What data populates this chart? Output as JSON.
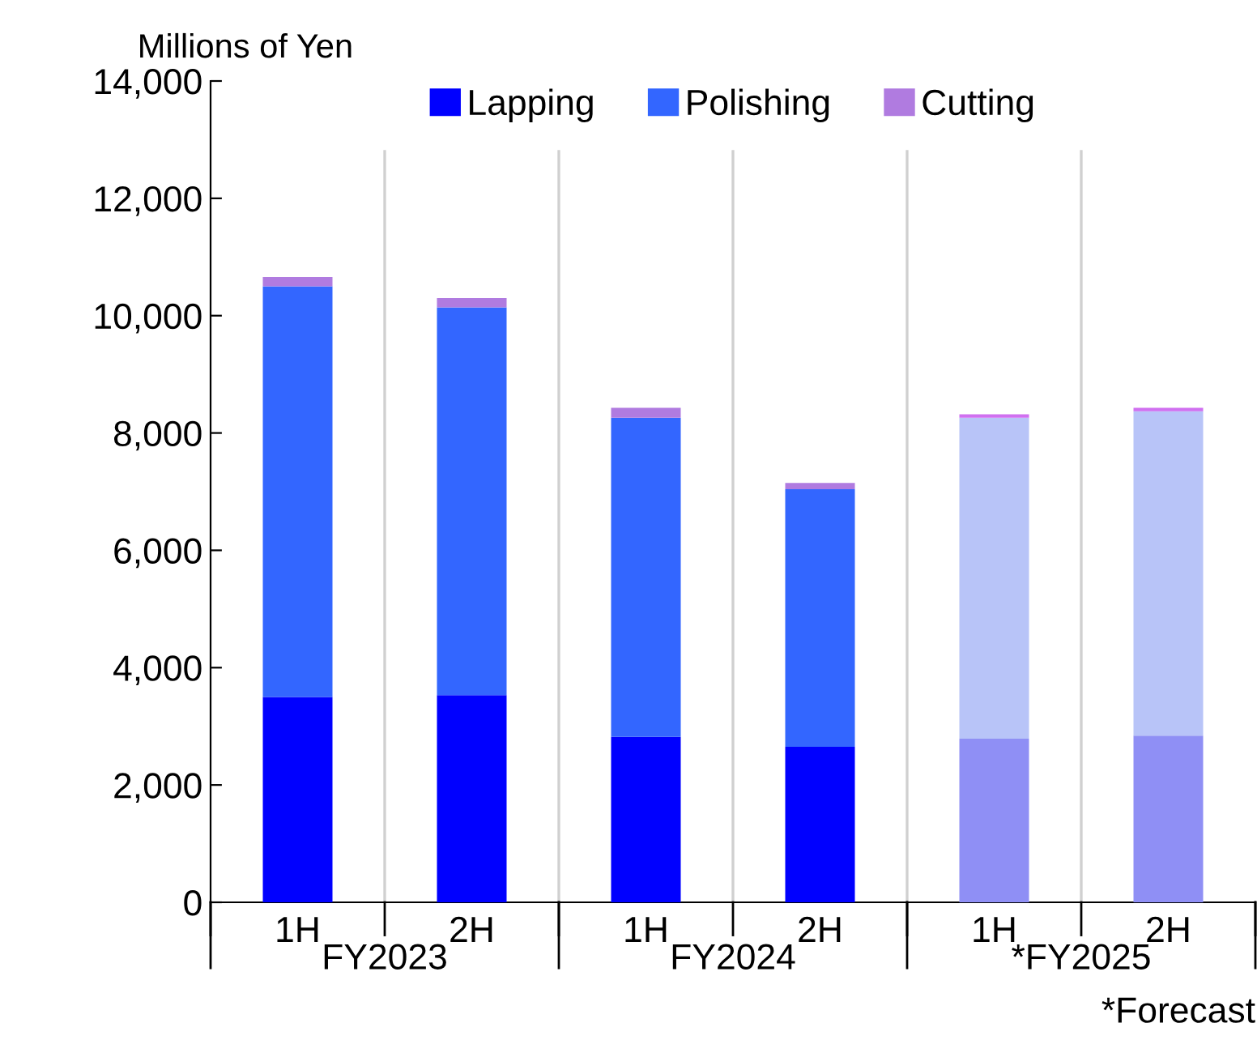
{
  "chart_data": {
    "type": "bar",
    "stacked": true,
    "ylabel": "Millions of Yen",
    "categories": [
      "1H",
      "2H",
      "1H",
      "2H",
      "1H",
      "2H"
    ],
    "series": [
      {
        "name": "Lapping",
        "color": "#0000ff",
        "colors": [
          "#0000ff",
          "#0000ff",
          "#0000ff",
          "#0000ff",
          "#8f8ff5",
          "#8f8ff5"
        ],
        "values": [
          3500,
          3530,
          2820,
          2650,
          2790,
          2840
        ]
      },
      {
        "name": "Polishing",
        "color": "#3366ff",
        "colors": [
          "#3366ff",
          "#3366ff",
          "#3366ff",
          "#3366ff",
          "#b8c4f8",
          "#b8c4f8"
        ],
        "values": [
          7000,
          6610,
          5440,
          4390,
          5470,
          5530
        ]
      },
      {
        "name": "Cutting",
        "color": "#b07be0",
        "colors": [
          "#b07be0",
          "#b07be0",
          "#b07be0",
          "#b07be0",
          "#d070f0",
          "#d070f0"
        ],
        "values": [
          160,
          160,
          170,
          110,
          60,
          60
        ]
      }
    ],
    "ylim": [
      0,
      14000
    ],
    "yticks": [
      {
        "value": 0,
        "label": "0"
      },
      {
        "value": 2000,
        "label": "2,000"
      },
      {
        "value": 4000,
        "label": "4,000"
      },
      {
        "value": 6000,
        "label": "6,000"
      },
      {
        "value": 8000,
        "label": "8,000"
      },
      {
        "value": 10000,
        "label": "10,000"
      },
      {
        "value": 12000,
        "label": "12,000"
      },
      {
        "value": 14000,
        "label": "14,000"
      }
    ],
    "grid": "x",
    "legend": "top",
    "annotations": [
      "FY2023",
      "FY2024",
      "*FY2025",
      "*Forecast"
    ]
  }
}
